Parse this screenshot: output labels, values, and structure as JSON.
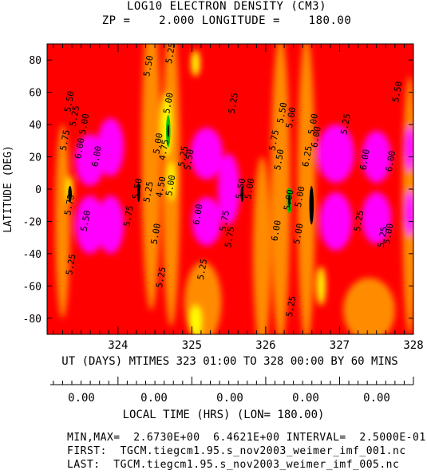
{
  "header": {
    "title": "LOG10 ELECTRON DENSITY (CM3)",
    "subtitle": "ZP =    2.000 LONGITUDE =    180.00"
  },
  "chart_data": {
    "type": "heatmap",
    "title": "LOG10 ELECTRON DENSITY (CM3)",
    "ylabel": "LATITUDE (DEG)",
    "xlabel": "UT (DAYS) MTIMES 323 01:00 TO 328 00:00 BY   60 MINS",
    "xlim": [
      323.04,
      328.0
    ],
    "ylim": [
      -90,
      90
    ],
    "x_ticks": [
      "324",
      "325",
      "326",
      "327",
      "328"
    ],
    "y_ticks": [
      "80",
      "60",
      "40",
      "20",
      "0",
      "-20",
      "-40",
      "-60",
      "-80"
    ],
    "min": 2.673,
    "max": 6.4621,
    "interval": 0.25,
    "contour_labels": [
      {
        "x": 324.45,
        "y": 76,
        "text": "5.50"
      },
      {
        "x": 324.75,
        "y": 84,
        "text": "5.25"
      },
      {
        "x": 323.38,
        "y": 54,
        "text": "5.50"
      },
      {
        "x": 323.45,
        "y": 45,
        "text": "5.25"
      },
      {
        "x": 323.58,
        "y": 40,
        "text": "5.00"
      },
      {
        "x": 324.72,
        "y": 53,
        "text": "5.00"
      },
      {
        "x": 325.6,
        "y": 53,
        "text": "5.25"
      },
      {
        "x": 326.26,
        "y": 47,
        "text": "5.50"
      },
      {
        "x": 326.38,
        "y": 44,
        "text": "5.00"
      },
      {
        "x": 326.68,
        "y": 40,
        "text": "5.00"
      },
      {
        "x": 327.12,
        "y": 40,
        "text": "5.25"
      },
      {
        "x": 327.82,
        "y": 60,
        "text": "5.50"
      },
      {
        "x": 323.32,
        "y": 30,
        "text": "5.75"
      },
      {
        "x": 323.52,
        "y": 25,
        "text": "6.00"
      },
      {
        "x": 323.75,
        "y": 20,
        "text": "6.00"
      },
      {
        "x": 324.58,
        "y": 28,
        "text": "5.00"
      },
      {
        "x": 324.66,
        "y": 24,
        "text": "4.75"
      },
      {
        "x": 324.92,
        "y": 20,
        "text": "5.25"
      },
      {
        "x": 325.0,
        "y": 18,
        "text": "5.50"
      },
      {
        "x": 326.15,
        "y": 30,
        "text": "5.75"
      },
      {
        "x": 326.22,
        "y": 18,
        "text": "5.50"
      },
      {
        "x": 326.6,
        "y": 20,
        "text": "6.25"
      },
      {
        "x": 326.72,
        "y": 32,
        "text": "6.00"
      },
      {
        "x": 327.38,
        "y": 18,
        "text": "6.00"
      },
      {
        "x": 327.73,
        "y": 17,
        "text": "6.00"
      },
      {
        "x": 324.3,
        "y": 0,
        "text": "5.50"
      },
      {
        "x": 324.45,
        "y": -2,
        "text": "5.25"
      },
      {
        "x": 324.62,
        "y": 1,
        "text": "4.50"
      },
      {
        "x": 324.75,
        "y": 2,
        "text": "5.00"
      },
      {
        "x": 325.7,
        "y": 0,
        "text": "5.50"
      },
      {
        "x": 325.82,
        "y": 0,
        "text": "5.00"
      },
      {
        "x": 326.35,
        "y": -7,
        "text": "5.00"
      },
      {
        "x": 326.5,
        "y": -5,
        "text": "5.00"
      },
      {
        "x": 323.38,
        "y": -10,
        "text": "5.75"
      },
      {
        "x": 323.6,
        "y": -20,
        "text": "5.50"
      },
      {
        "x": 324.18,
        "y": -17,
        "text": "5.75"
      },
      {
        "x": 324.55,
        "y": -28,
        "text": "5.00"
      },
      {
        "x": 325.12,
        "y": -16,
        "text": "6.00"
      },
      {
        "x": 325.48,
        "y": -20,
        "text": "5.75"
      },
      {
        "x": 325.55,
        "y": -30,
        "text": "5.75"
      },
      {
        "x": 326.18,
        "y": -26,
        "text": "6.00"
      },
      {
        "x": 326.48,
        "y": -28,
        "text": "5.00"
      },
      {
        "x": 327.3,
        "y": -20,
        "text": "5.25"
      },
      {
        "x": 327.62,
        "y": -30,
        "text": "5.25"
      },
      {
        "x": 327.7,
        "y": -28,
        "text": "5.00"
      },
      {
        "x": 323.4,
        "y": -47,
        "text": "5.25"
      },
      {
        "x": 324.62,
        "y": -55,
        "text": "5.25"
      },
      {
        "x": 325.18,
        "y": -50,
        "text": "5.25"
      },
      {
        "x": 326.38,
        "y": -73,
        "text": "5.25"
      }
    ],
    "colorbands": [
      "#ffffff",
      "#ffff00",
      "#00c800",
      "#000000",
      "#ff8c00",
      "#ff0000",
      "#ff00ff"
    ]
  },
  "local_time_axis": {
    "tick_labels": [
      "0.00",
      "0.00",
      "0.00",
      "0.00",
      "0.00"
    ],
    "label": "LOCAL TIME (HRS) (LON= 180.00)"
  },
  "footer": {
    "minmax": "MIN,MAX=  2.6730E+00  6.4621E+00 INTERVAL=  2.5000E-01",
    "first": "FIRST:  TGCM.tiegcm1.95.s_nov2003_weimer_imf_001.nc",
    "last": "LAST:  TGCM.tiegcm1.95.s_nov2003_weimer_imf_005.nc"
  }
}
